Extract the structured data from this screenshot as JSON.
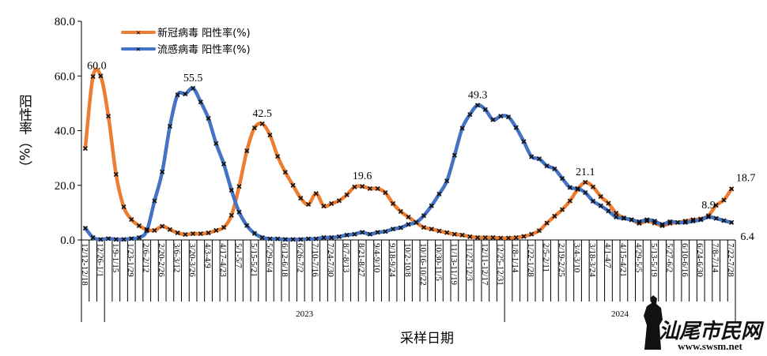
{
  "chart_data": {
    "type": "line",
    "title": "",
    "xlabel": "采样日期",
    "ylabel": "阳性率（%）",
    "ylim": [
      0,
      80
    ],
    "yticks": [
      "0.0",
      "20.0",
      "40.0",
      "60.0",
      "80.0"
    ],
    "grid": false,
    "legend_position": "top-left",
    "x_label_every": 2,
    "x_tick_labels": [
      "12/12-12/18",
      "12/26-1/1",
      "1/9-1/15",
      "1/23-1/29",
      "2/6-2/12",
      "2/20-2/26",
      "3/6-3/12",
      "3/20-3/26",
      "4/3-4/9",
      "4/17-4/23",
      "5/1-5/7",
      "5/15-5/21",
      "5/29-6/4",
      "6/12-6/18",
      "6/26-7/2",
      "7/10-7/16",
      "7/24-7/30",
      "8/7-8/13",
      "8/21-8/27",
      "9/4-9/10",
      "9/18-9/24",
      "10/2-10/8",
      "10/16-10/22",
      "10/30-11/5",
      "11/13-11/19",
      "11/27-12/3",
      "12/11-12/17",
      "12/25-12/31",
      "1/8-1/14",
      "1/22-1/28",
      "2/5-2/11",
      "2/19-2/25",
      "3/4-3/10",
      "3/18-3/24",
      "4/1-4/7",
      "4/15-4/21",
      "4/29-5/5",
      "5/13-5/19",
      "5/27-6/2",
      "6/10-6/16",
      "6/24-6/30",
      "7/8-7/14",
      "7/22-7/28"
    ],
    "year_groups": [
      {
        "label": "",
        "from": 0,
        "to": 2
      },
      {
        "label": "2023",
        "from": 3,
        "to": 54
      },
      {
        "label": "2024",
        "from": 55,
        "to": 84
      }
    ],
    "series": [
      {
        "name": "新冠病毒 阳性率(%)",
        "color": "#ED7D31",
        "values": [
          33.5,
          59.8,
          60.0,
          45.3,
          24.0,
          12.1,
          7.5,
          5.2,
          3.8,
          3.5,
          5.0,
          3.8,
          2.6,
          2.0,
          2.3,
          2.3,
          2.6,
          3.5,
          4.6,
          9.0,
          19.6,
          32.6,
          41.0,
          42.5,
          38.4,
          30.6,
          24.8,
          20.0,
          15.3,
          13.0,
          17.0,
          12.4,
          13.3,
          14.4,
          16.5,
          19.4,
          19.6,
          18.8,
          18.8,
          17.3,
          13.3,
          10.4,
          8.4,
          6.4,
          4.6,
          4.0,
          3.3,
          2.7,
          2.1,
          1.8,
          1.2,
          0.9,
          0.9,
          0.9,
          0.7,
          0.7,
          0.9,
          1.3,
          2.1,
          3.4,
          6.2,
          8.7,
          11.1,
          14.3,
          18.5,
          21.1,
          19.4,
          15.9,
          13.4,
          9.8,
          8.1,
          7.4,
          6.1,
          6.9,
          6.2,
          5.2,
          6.1,
          6.4,
          6.9,
          7.4,
          7.7,
          8.9,
          12.7,
          14.6,
          18.7
        ],
        "data_labels": [
          {
            "index": 2,
            "text": "60.0"
          },
          {
            "index": 23,
            "text": "42.5"
          },
          {
            "index": 36,
            "text": "19.6"
          },
          {
            "index": 65,
            "text": "21.1"
          },
          {
            "index": 81,
            "text": "8.9"
          },
          {
            "index": 84,
            "text": "18.7"
          }
        ]
      },
      {
        "name": "流感病毒 阳性率(%)",
        "color": "#4472C4",
        "values": [
          4.3,
          0.9,
          0.2,
          0.5,
          0.2,
          0.2,
          0.5,
          0.9,
          3.4,
          14.3,
          24.9,
          41.6,
          53.1,
          53.4,
          55.5,
          50.5,
          44.5,
          35.3,
          27.8,
          18.2,
          10.2,
          5.3,
          2.4,
          0.9,
          0.4,
          0.4,
          0.2,
          0.2,
          0.2,
          0.4,
          0.4,
          0.9,
          0.9,
          1.2,
          1.8,
          2.1,
          2.8,
          2.1,
          2.8,
          3.1,
          4.0,
          4.5,
          5.7,
          6.4,
          8.9,
          12.5,
          16.8,
          21.6,
          31.0,
          40.9,
          45.9,
          49.3,
          47.7,
          44.0,
          45.3,
          45.0,
          41.1,
          36.0,
          30.5,
          29.7,
          27.1,
          26.0,
          22.5,
          19.2,
          18.8,
          17.3,
          14.2,
          12.5,
          10.6,
          8.4,
          7.9,
          7.4,
          6.7,
          7.4,
          6.9,
          5.7,
          6.7,
          6.4,
          6.4,
          6.9,
          7.4,
          8.4,
          7.9,
          7.1,
          6.4
        ],
        "data_labels": [
          {
            "index": 14,
            "text": "55.5"
          },
          {
            "index": 51,
            "text": "49.3"
          },
          {
            "index": 84,
            "text": "6.4"
          }
        ]
      }
    ]
  },
  "watermark": {
    "title": "汕尾市民网",
    "url": "www.swsm.net"
  }
}
